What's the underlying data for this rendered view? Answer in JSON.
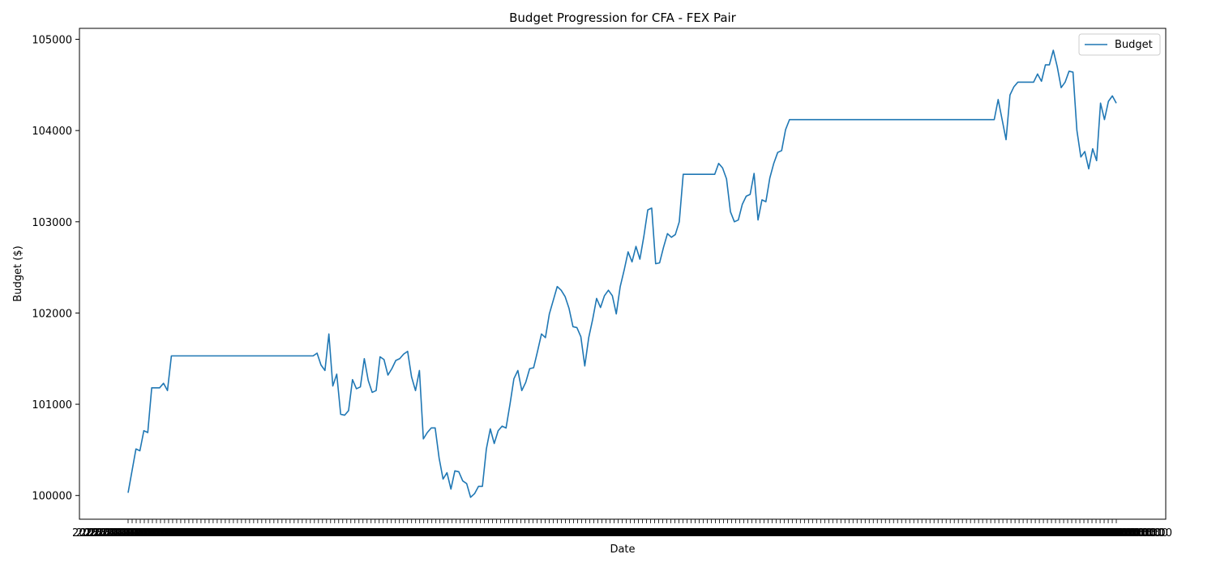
{
  "chart_data": {
    "type": "line",
    "title": "Budget Progression for CFA - FEX Pair",
    "xlabel": "Date",
    "ylabel": "Budget ($)",
    "ylim": [
      99740,
      105120
    ],
    "yticks": [
      100000,
      101000,
      102000,
      103000,
      104000,
      105000
    ],
    "xtick_count": 245,
    "xtick_label_text": "2023-00-00 00:00:00",
    "grid": false,
    "legend": {
      "placement": "top-right",
      "entries": [
        "Budget"
      ]
    },
    "series": [
      {
        "name": "Budget",
        "color": "#1f77b4",
        "values": [
          100030,
          100270,
          100510,
          100490,
          100710,
          100690,
          101180,
          101180,
          101180,
          101230,
          101150,
          101530,
          101530,
          101530,
          101530,
          101530,
          101530,
          101530,
          101530,
          101530,
          101530,
          101530,
          101530,
          101530,
          101530,
          101530,
          101530,
          101530,
          101530,
          101530,
          101530,
          101530,
          101530,
          101530,
          101530,
          101530,
          101530,
          101530,
          101530,
          101530,
          101530,
          101530,
          101530,
          101530,
          101530,
          101530,
          101530,
          101530,
          101560,
          101430,
          101370,
          101770,
          101200,
          101330,
          100890,
          100880,
          100930,
          101270,
          101170,
          101190,
          101500,
          101260,
          101130,
          101150,
          101520,
          101490,
          101320,
          101390,
          101480,
          101500,
          101550,
          101580,
          101300,
          101150,
          101370,
          100620,
          100690,
          100740,
          100740,
          100410,
          100180,
          100250,
          100070,
          100270,
          100260,
          100160,
          100130,
          99980,
          100020,
          100100,
          100100,
          100510,
          100730,
          100570,
          100710,
          100760,
          100740,
          101000,
          101280,
          101370,
          101150,
          101240,
          101390,
          101400,
          101580,
          101770,
          101730,
          101990,
          102140,
          102290,
          102250,
          102180,
          102050,
          101850,
          101840,
          101740,
          101420,
          101730,
          101930,
          102160,
          102060,
          102190,
          102250,
          102190,
          101990,
          102290,
          102470,
          102670,
          102560,
          102730,
          102590,
          102840,
          103130,
          103150,
          102540,
          102550,
          102720,
          102870,
          102830,
          102860,
          103000,
          103520,
          103520,
          103520,
          103520,
          103520,
          103520,
          103520,
          103520,
          103520,
          103640,
          103590,
          103470,
          103110,
          103000,
          103020,
          103190,
          103280,
          103300,
          103530,
          103020,
          103240,
          103220,
          103480,
          103640,
          103760,
          103780,
          104010,
          104120,
          104120,
          104120,
          104120,
          104120,
          104120,
          104120,
          104120,
          104120,
          104120,
          104120,
          104120,
          104120,
          104120,
          104120,
          104120,
          104120,
          104120,
          104120,
          104120,
          104120,
          104120,
          104120,
          104120,
          104120,
          104120,
          104120,
          104120,
          104120,
          104120,
          104120,
          104120,
          104120,
          104120,
          104120,
          104120,
          104120,
          104120,
          104120,
          104120,
          104120,
          104120,
          104120,
          104120,
          104120,
          104120,
          104120,
          104120,
          104120,
          104120,
          104120,
          104120,
          104120,
          104340,
          104120,
          103900,
          104390,
          104480,
          104530,
          104530,
          104530,
          104530,
          104530,
          104620,
          104540,
          104720,
          104720,
          104880,
          104700,
          104470,
          104530,
          104650,
          104640,
          104000,
          103710,
          103770,
          103580,
          103800,
          103670,
          104300,
          104120,
          104320,
          104380,
          104300
        ]
      }
    ]
  }
}
